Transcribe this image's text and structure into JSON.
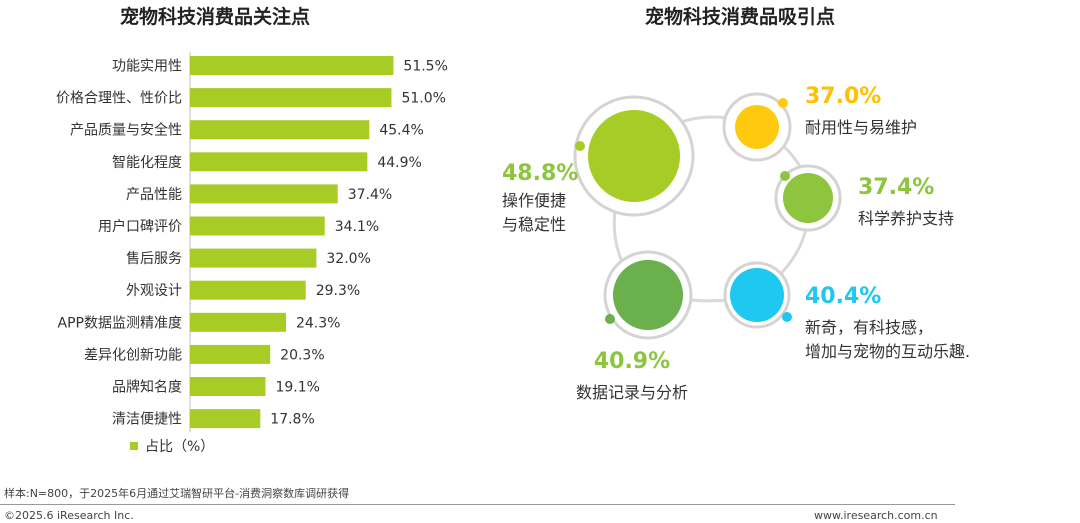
{
  "left_chart": {
    "title": "宠物科技消费品关注点",
    "legend_label": "占比（%）",
    "bar_color": "#a7cc26"
  },
  "right_chart": {
    "title": "宠物科技消费品吸引点"
  },
  "footer": {
    "note": "样本:N=800，于2025年6月通过艾瑞智研平台-消费洞察数库调研获得",
    "copyright": "©2025.6 iResearch Inc.",
    "website": "www.iresearch.com.cn"
  },
  "chart_data": [
    {
      "type": "bar",
      "orientation": "horizontal",
      "title": "宠物科技消费品关注点",
      "categories": [
        "功能实用性",
        "价格合理性、性价比",
        "产品质量与安全性",
        "智能化程度",
        "产品性能",
        "用户口碑评价",
        "售后服务",
        "外观设计",
        "APP数据监测精准度",
        "差异化创新功能",
        "品牌知名度",
        "清洁便捷性"
      ],
      "series": [
        {
          "name": "占比（%）",
          "values": [
            51.5,
            51.0,
            45.4,
            44.9,
            37.4,
            34.1,
            32.0,
            29.3,
            24.3,
            20.3,
            19.1,
            17.8
          ]
        }
      ],
      "value_labels": [
        "51.5%",
        "51.0%",
        "45.4%",
        "44.9%",
        "37.4%",
        "34.1%",
        "32.0%",
        "29.3%",
        "24.3%",
        "20.3%",
        "19.1%",
        "17.8%"
      ],
      "legend": "bottom"
    },
    {
      "type": "bubble",
      "title": "宠物科技消费品吸引点",
      "items": [
        {
          "label_lines": [
            "操作便捷",
            "与稳定性"
          ],
          "value": 48.8,
          "value_label": "48.8%",
          "color": "#a7cc26",
          "value_color": "#8dc53e"
        },
        {
          "label_lines": [
            "耐用性与易维护"
          ],
          "value": 37.0,
          "value_label": "37.0%",
          "color": "#ffc90e",
          "value_color": "#ffc000"
        },
        {
          "label_lines": [
            "科学养护支持"
          ],
          "value": 37.4,
          "value_label": "37.4%",
          "color": "#8dc53e",
          "value_color": "#8dc53e"
        },
        {
          "label_lines": [
            "新奇，有科技感，",
            "增加与宠物的互动乐趣."
          ],
          "value": 40.4,
          "value_label": "40.4%",
          "color": "#1ec8f0",
          "value_color": "#1ec8f0"
        },
        {
          "label_lines": [
            "数据记录与分析"
          ],
          "value": 40.9,
          "value_label": "40.9%",
          "color": "#6ab04c",
          "value_color": "#8dc53e"
        }
      ]
    }
  ]
}
